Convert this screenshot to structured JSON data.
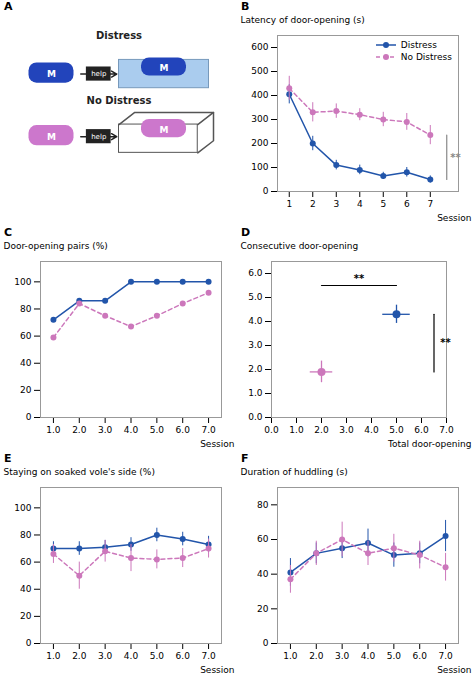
{
  "chart_data": [
    {
      "type": "diagram",
      "title": "A",
      "series": [
        {
          "name": "Distress",
          "color": "#2244BB",
          "annotations": [
            "M",
            "help",
            "M"
          ]
        },
        {
          "name": "No Distress",
          "color": "#CC77CC",
          "annotations": [
            "M",
            "help",
            "M"
          ]
        }
      ]
    },
    {
      "type": "line",
      "title": "B",
      "x": [
        1,
        2,
        3,
        4,
        5,
        6,
        7
      ],
      "xlabel": "Session",
      "ylabel": "Latency of door-opening (s)",
      "xlim": [
        0.5,
        8.2
      ],
      "ylim": [
        0,
        650
      ],
      "xticks": [
        1,
        2,
        3,
        4,
        5,
        6,
        7
      ],
      "yticks": [
        0,
        100,
        200,
        300,
        400,
        500,
        600
      ],
      "grid": false,
      "legend": "upper right",
      "series": [
        {
          "name": "Distress",
          "color": "#2255AA",
          "line_style": "solid",
          "marker": "circle",
          "values": [
            405,
            200,
            110,
            90,
            65,
            80,
            50
          ],
          "errors": [
            40,
            30,
            20,
            20,
            15,
            20,
            15
          ]
        },
        {
          "name": "No Distress",
          "color": "#CC77BB",
          "line_style": "dashed",
          "marker": "circle",
          "values": [
            430,
            330,
            335,
            320,
            300,
            290,
            235
          ],
          "errors": [
            50,
            40,
            30,
            25,
            30,
            35,
            40
          ]
        }
      ],
      "annotations": [
        {
          "text": "**",
          "x": 7.85,
          "y": 142,
          "color": "#888888",
          "bracket": {
            "x": [
              7.7,
              7.7
            ],
            "y": [
              50,
              235
            ]
          }
        }
      ]
    },
    {
      "type": "line",
      "title": "C",
      "x": [
        1,
        2,
        3,
        4,
        5,
        6,
        7
      ],
      "xlabel": "Session",
      "ylabel": "Door-opening pairs (%)",
      "xlim": [
        0.5,
        7.5
      ],
      "ylim": [
        0,
        115
      ],
      "xticks": [
        1,
        2,
        3,
        4,
        5,
        6,
        7
      ],
      "yticks": [
        0,
        20,
        40,
        60,
        80,
        100
      ],
      "grid": false,
      "series": [
        {
          "color": "#2255AA",
          "line_style": "solid",
          "marker": "circle",
          "values": [
            72,
            86,
            86,
            100,
            100,
            100,
            100
          ]
        },
        {
          "color": "#CC77BB",
          "line_style": "dashed",
          "marker": "circle",
          "values": [
            59,
            84,
            75,
            67,
            75,
            84,
            92
          ]
        }
      ]
    },
    {
      "type": "scatter",
      "title": "D",
      "xlabel": "Total door-opening",
      "ylabel": "Consecutive door-opening",
      "xlim": [
        0,
        7
      ],
      "ylim": [
        0,
        6.5
      ],
      "xticks": [
        0,
        1,
        2,
        3,
        4,
        5,
        6,
        7
      ],
      "yticks": [
        0,
        1,
        2,
        3,
        4,
        5,
        6
      ],
      "grid": false,
      "series": [
        {
          "color": "#2255AA",
          "marker": "circle",
          "x": [
            5.0
          ],
          "y": [
            4.3
          ],
          "xerr": [
            0.55
          ],
          "yerr": [
            0.38
          ]
        },
        {
          "color": "#CC77BB",
          "marker": "circle",
          "x": [
            2.0
          ],
          "y": [
            1.9
          ],
          "xerr": [
            0.45
          ],
          "yerr": [
            0.45
          ]
        }
      ],
      "annotations": [
        {
          "text": "**",
          "x": 3.5,
          "y": 5.65,
          "color": "#000000",
          "bracket": {
            "x": [
              2.0,
              5.0
            ],
            "y": [
              5.5,
              5.5
            ]
          }
        },
        {
          "text": "**",
          "x": 6.75,
          "y": 3.1,
          "color": "#000000",
          "bracket": {
            "x": [
              6.5,
              6.5
            ],
            "y": [
              1.9,
              4.3
            ]
          }
        }
      ]
    },
    {
      "type": "line",
      "title": "E",
      "x": [
        1,
        2,
        3,
        4,
        5,
        6,
        7
      ],
      "xlabel": "Session",
      "ylabel": "Staying on soaked vole's side (%)",
      "xlim": [
        0.5,
        7.5
      ],
      "ylim": [
        0,
        115
      ],
      "xticks": [
        1,
        2,
        3,
        4,
        5,
        6,
        7
      ],
      "yticks": [
        0,
        20,
        40,
        60,
        80,
        100
      ],
      "grid": false,
      "series": [
        {
          "color": "#2255AA",
          "line_style": "solid",
          "marker": "circle",
          "values": [
            70,
            70,
            71,
            73,
            80,
            77,
            73
          ],
          "errors": [
            5,
            5,
            5,
            5,
            5,
            5,
            6
          ]
        },
        {
          "color": "#CC77BB",
          "line_style": "dashed",
          "marker": "circle",
          "values": [
            66,
            50,
            68,
            63,
            62,
            63,
            70
          ],
          "errors": [
            7,
            10,
            8,
            10,
            7,
            7,
            7
          ]
        }
      ]
    },
    {
      "type": "line",
      "title": "F",
      "x": [
        1,
        2,
        3,
        4,
        5,
        6,
        7
      ],
      "xlabel": "Session",
      "ylabel": "Duration of huddling (s)",
      "xlim": [
        0.5,
        7.5
      ],
      "ylim": [
        0,
        90
      ],
      "xticks": [
        1,
        2,
        3,
        4,
        5,
        6,
        7
      ],
      "yticks": [
        0,
        20,
        40,
        60,
        80
      ],
      "grid": false,
      "series": [
        {
          "color": "#2255AA",
          "line_style": "solid",
          "marker": "circle",
          "values": [
            41,
            52,
            55,
            58,
            51,
            52,
            62
          ],
          "errors": [
            8,
            6,
            6,
            8,
            7,
            6,
            9
          ]
        },
        {
          "color": "#CC77BB",
          "line_style": "dashed",
          "marker": "circle",
          "values": [
            37,
            52,
            60,
            52,
            55,
            51,
            44
          ],
          "errors": [
            8,
            7,
            10,
            7,
            8,
            8,
            8
          ]
        }
      ]
    }
  ]
}
